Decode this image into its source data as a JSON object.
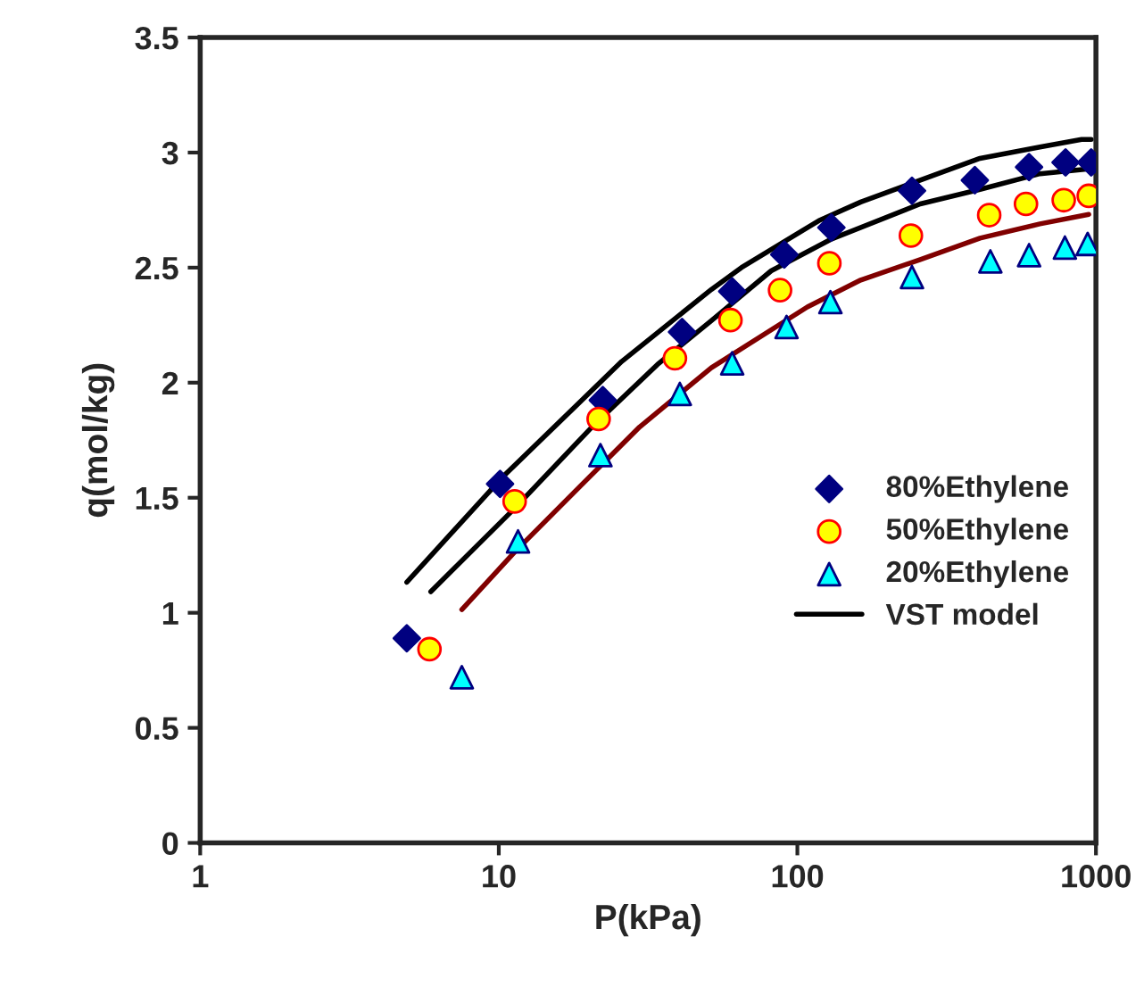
{
  "chart_data": {
    "type": "scatter",
    "xlabel": "P(kPa)",
    "ylabel": "q(mol/kg)",
    "log": "x",
    "xlim": [
      1,
      1000
    ],
    "xticks": [
      1,
      10,
      100,
      1000
    ],
    "ylim": [
      0,
      3.5
    ],
    "yticks": [
      0,
      0.5,
      1,
      1.5,
      2,
      2.5,
      3,
      3.5
    ],
    "grid": false,
    "legend": "right",
    "series": [
      {
        "name": "80%Ethylene",
        "marker": "diamond",
        "color": "#000080",
        "x": [
          4.92,
          10.1,
          22.3,
          41.1,
          60.5,
          90.4,
          130,
          242,
          393,
          597,
          791,
          964
        ],
        "values": [
          0.889,
          1.56,
          1.924,
          2.22,
          2.397,
          2.557,
          2.674,
          2.834,
          2.88,
          2.937,
          2.957,
          2.957
        ]
      },
      {
        "name": "50%Ethylene",
        "marker": "circle",
        "color": "#ffff00",
        "x": [
          5.86,
          11.3,
          21.6,
          38.9,
          59.7,
          87.5,
          128,
          240,
          439,
          583,
          780,
          946
        ],
        "values": [
          0.842,
          1.484,
          1.842,
          2.106,
          2.272,
          2.402,
          2.519,
          2.639,
          2.728,
          2.777,
          2.793,
          2.812
        ]
      },
      {
        "name": "20%Ethylene",
        "marker": "triangle",
        "color": "#00ffff",
        "x": [
          7.52,
          11.6,
          21.9,
          40.4,
          60.5,
          92,
          129,
          242,
          443,
          597,
          787,
          938
        ],
        "values": [
          0.72,
          1.31,
          1.685,
          1.951,
          2.084,
          2.242,
          2.35,
          2.459,
          2.527,
          2.554,
          2.587,
          2.603
        ]
      },
      {
        "name": "VST model",
        "type": "line",
        "marker": "none",
        "color": "#000000",
        "x": [
          4.92,
          10.3,
          18.7,
          25.8,
          51.5,
          64.9,
          118,
          163,
          258,
          409,
          649,
          895,
          964
        ],
        "values": [
          1.133,
          1.59,
          1.916,
          2.092,
          2.405,
          2.5,
          2.704,
          2.785,
          2.88,
          2.975,
          3.024,
          3.057,
          3.057
        ]
      },
      {
        "type": "line",
        "marker": "none",
        "color": "#000000",
        "x": [
          5.92,
          11.3,
          20.5,
          34,
          51.5,
          81.7,
          129,
          258,
          409,
          649,
          946
        ],
        "values": [
          1.092,
          1.454,
          1.807,
          2.079,
          2.269,
          2.486,
          2.622,
          2.777,
          2.84,
          2.908,
          2.929
        ]
      },
      {
        "type": "line",
        "marker": "none",
        "color": "#800000",
        "x": [
          7.52,
          11.3,
          18.7,
          29.6,
          51.5,
          108,
          163,
          258,
          409,
          649,
          946
        ],
        "values": [
          1.014,
          1.264,
          1.549,
          1.807,
          2.065,
          2.329,
          2.446,
          2.535,
          2.628,
          2.69,
          2.731
        ]
      }
    ]
  }
}
